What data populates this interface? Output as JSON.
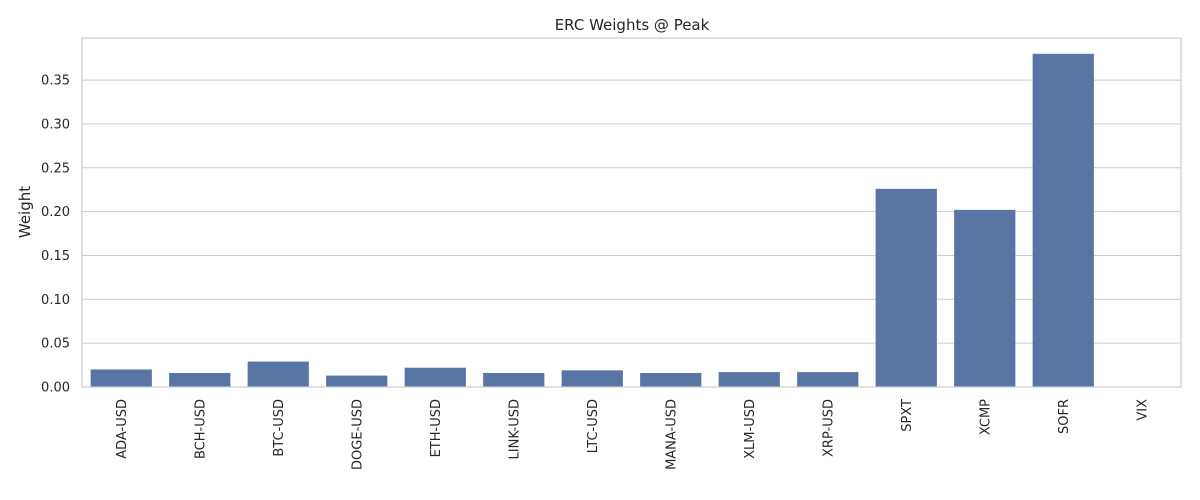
{
  "chart_data": {
    "type": "bar",
    "title": "ERC Weights @ Peak",
    "xlabel": "",
    "ylabel": "Weight",
    "categories": [
      "ADA-USD",
      "BCH-USD",
      "BTC-USD",
      "DOGE-USD",
      "ETH-USD",
      "LINK-USD",
      "LTC-USD",
      "MANA-USD",
      "XLM-USD",
      "XRP-USD",
      "SPXT",
      "XCMP",
      "SOFR",
      "VIX"
    ],
    "values": [
      0.02,
      0.016,
      0.029,
      0.013,
      0.022,
      0.016,
      0.019,
      0.016,
      0.017,
      0.017,
      0.226,
      0.202,
      0.38,
      0.0
    ],
    "ylim": [
      0,
      0.398
    ],
    "yticks": [
      0.0,
      0.05,
      0.1,
      0.15,
      0.2,
      0.25,
      0.3,
      0.35
    ],
    "ytick_labels": [
      "0.00",
      "0.05",
      "0.10",
      "0.15",
      "0.20",
      "0.25",
      "0.30",
      "0.35"
    ],
    "grid": "y",
    "bar_color": "#5975a4",
    "grid_color": "#cccccc"
  }
}
